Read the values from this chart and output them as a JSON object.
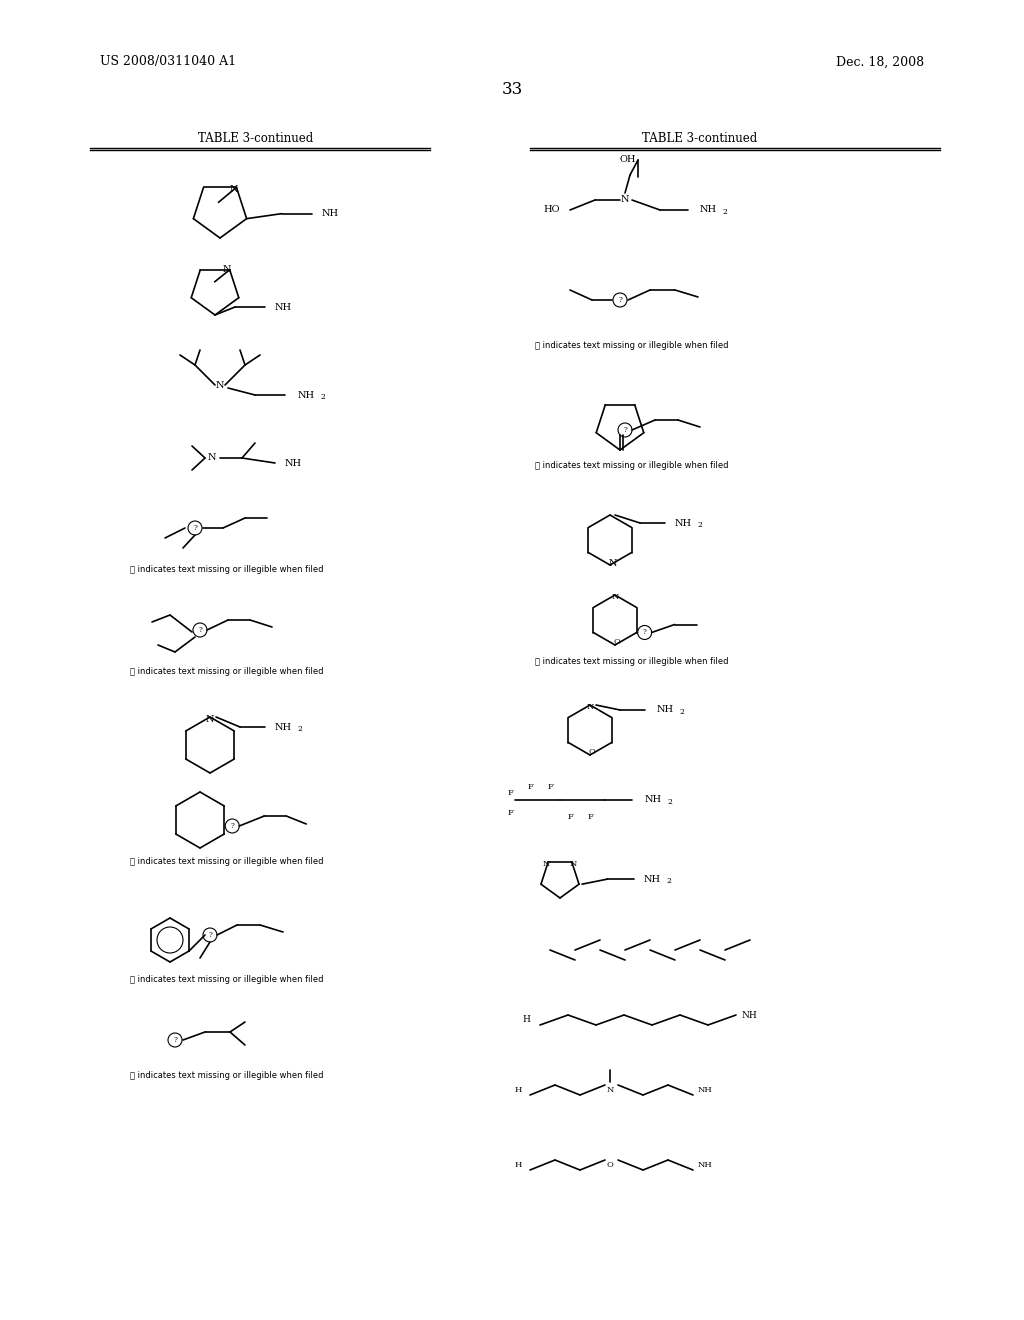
{
  "page_number": "33",
  "patent_number": "US 2008/0311040 A1",
  "patent_date": "Dec. 18, 2008",
  "table_title": "TABLE 3-continued",
  "background_color": "#ffffff",
  "text_color": "#000000",
  "font_size_header": 9,
  "font_size_body": 7,
  "font_size_page": 12
}
